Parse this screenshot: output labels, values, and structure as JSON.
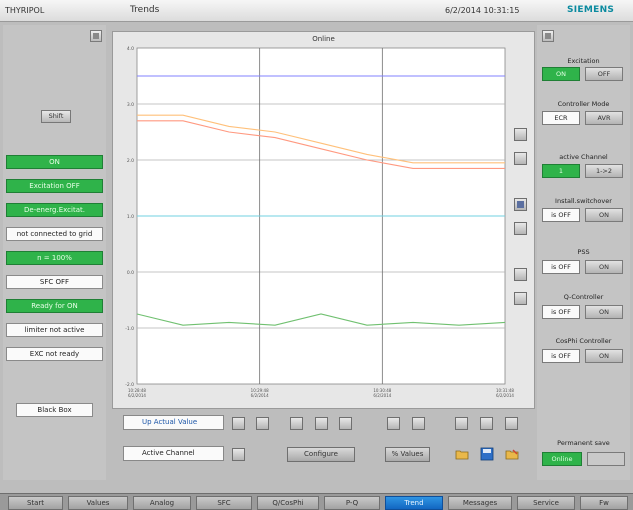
{
  "header": {
    "app_name": "THYRIPOL",
    "title": "Trends",
    "datetime": "6/2/2014 10:31:15",
    "logo": "SIEMENS"
  },
  "left": {
    "top_btn_icon": "collapse-icon",
    "shift_label": "Shift",
    "status": [
      {
        "text": "ON",
        "style": "green"
      },
      {
        "text": "Excitation OFF",
        "style": "green"
      },
      {
        "text": "De-energ.Excitat.",
        "style": "green"
      },
      {
        "text": "not connected to grid",
        "style": "white"
      },
      {
        "text": "n = 100%",
        "style": "green"
      },
      {
        "text": "SFC OFF",
        "style": "white"
      },
      {
        "text": "Ready for ON",
        "style": "green"
      },
      {
        "text": "limiter not active",
        "style": "white"
      },
      {
        "text": "EXC not ready",
        "style": "white"
      }
    ],
    "black_box_label": "Black Box"
  },
  "chart": {
    "title": "Online",
    "y_ticks": [
      "4.0",
      "3.0",
      "2.0",
      "1.0",
      "0.0",
      "-1.0",
      "-2.0"
    ],
    "x_ticks": [
      "10:28:48\n6/2/2014",
      "10:29:48\n6/2/2014",
      "10:30:48\n6/2/2014",
      "10:31:48\n6/2/2014"
    ]
  },
  "chart_data": {
    "type": "line",
    "title": "Online",
    "x": [
      "10:28:48",
      "10:29:18",
      "10:29:48",
      "10:30:18",
      "10:30:48",
      "10:31:18",
      "10:31:48",
      "10:32:18",
      "10:32:48"
    ],
    "ylim": [
      -2.0,
      4.0
    ],
    "grid": true,
    "series": [
      {
        "color": "#8080ff",
        "values": [
          3.5,
          3.5,
          3.5,
          3.5,
          3.5,
          3.5,
          3.5,
          3.5,
          3.5
        ]
      },
      {
        "color": "#ffc07a",
        "values": [
          2.8,
          2.8,
          2.6,
          2.5,
          2.3,
          2.1,
          1.95,
          1.95,
          1.95
        ]
      },
      {
        "color": "#ff9980",
        "values": [
          2.7,
          2.7,
          2.5,
          2.4,
          2.2,
          2.0,
          1.85,
          1.85,
          1.85
        ]
      },
      {
        "color": "#70d0e0",
        "values": [
          1.0,
          1.0,
          1.0,
          1.0,
          1.0,
          1.0,
          1.0,
          1.0,
          1.0
        ]
      },
      {
        "color": "#70c070",
        "values": [
          -0.75,
          -0.95,
          -0.9,
          -0.95,
          -0.75,
          -0.95,
          -0.9,
          -0.95,
          -0.9
        ]
      }
    ]
  },
  "right": {
    "top_btn_icon": "expand-icon",
    "excitation": {
      "label": "Excitation",
      "on": "ON",
      "off": "OFF"
    },
    "controller_mode": {
      "label": "Controller Mode",
      "val": "ECR",
      "btn": "AVR"
    },
    "active_channel": {
      "label": "active Channel",
      "val": "1",
      "btn": "1->2"
    },
    "sync": {
      "label": "Install.switchover",
      "val": "is OFF",
      "btn": "ON"
    },
    "pss": {
      "label": "PSS",
      "val": "is OFF",
      "btn": "ON"
    },
    "q_controller": {
      "label": "Q-Controller",
      "val": "is OFF",
      "btn": "ON"
    },
    "cosphi": {
      "label": "CosPhi Controller",
      "val": "is OFF",
      "btn": "ON"
    },
    "permanent_save": {
      "label": "Permanent save",
      "val": "Online",
      "btn": ""
    }
  },
  "controls": {
    "combo1": "Up Actual Value",
    "combo2": "Active Channel",
    "configure": "Configure",
    "values": "% Values"
  },
  "nav": [
    "Start",
    "Values",
    "Analog",
    "SFC",
    "Q/CosPhi",
    "P-Q",
    "Trend",
    "Messages",
    "Service",
    "Fw"
  ],
  "nav_active": "Trend"
}
